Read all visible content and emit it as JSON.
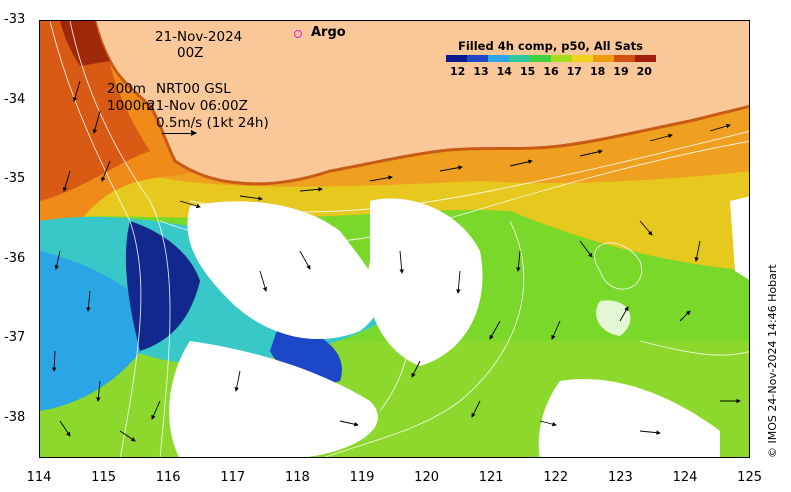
{
  "date_label": "21-Nov-2024",
  "time_label": "00Z",
  "argo_label": "Argo",
  "depth_label_1": "200m",
  "source_label": "NRT00 GSL",
  "depth_label_2": "1000m",
  "valid_time": "21-Nov 06:00Z",
  "scale_label": "0.5m/s (1kt 24h)",
  "legend": {
    "title": "Filled 4h comp, p50, All Sats",
    "ticks": [
      "12",
      "13",
      "14",
      "15",
      "16",
      "17",
      "18",
      "19",
      "20"
    ],
    "colors": [
      "#0a1a8c",
      "#1c48c8",
      "#2aa6e6",
      "#2ec8a0",
      "#3cd23c",
      "#a6dc1e",
      "#f0d21e",
      "#f09a14",
      "#d25014",
      "#a01e0a"
    ]
  },
  "y_axis": [
    "-33",
    "-34",
    "-35",
    "-36",
    "-37",
    "-38"
  ],
  "x_axis": [
    "114",
    "115",
    "116",
    "117",
    "118",
    "119",
    "120",
    "121",
    "122",
    "123",
    "124",
    "125"
  ],
  "credit": "© IMOS 24-Nov-2024 14:46 Hobart",
  "colors": {
    "land": "#fac898",
    "frame": "#000000",
    "argo": "#e020e0"
  }
}
